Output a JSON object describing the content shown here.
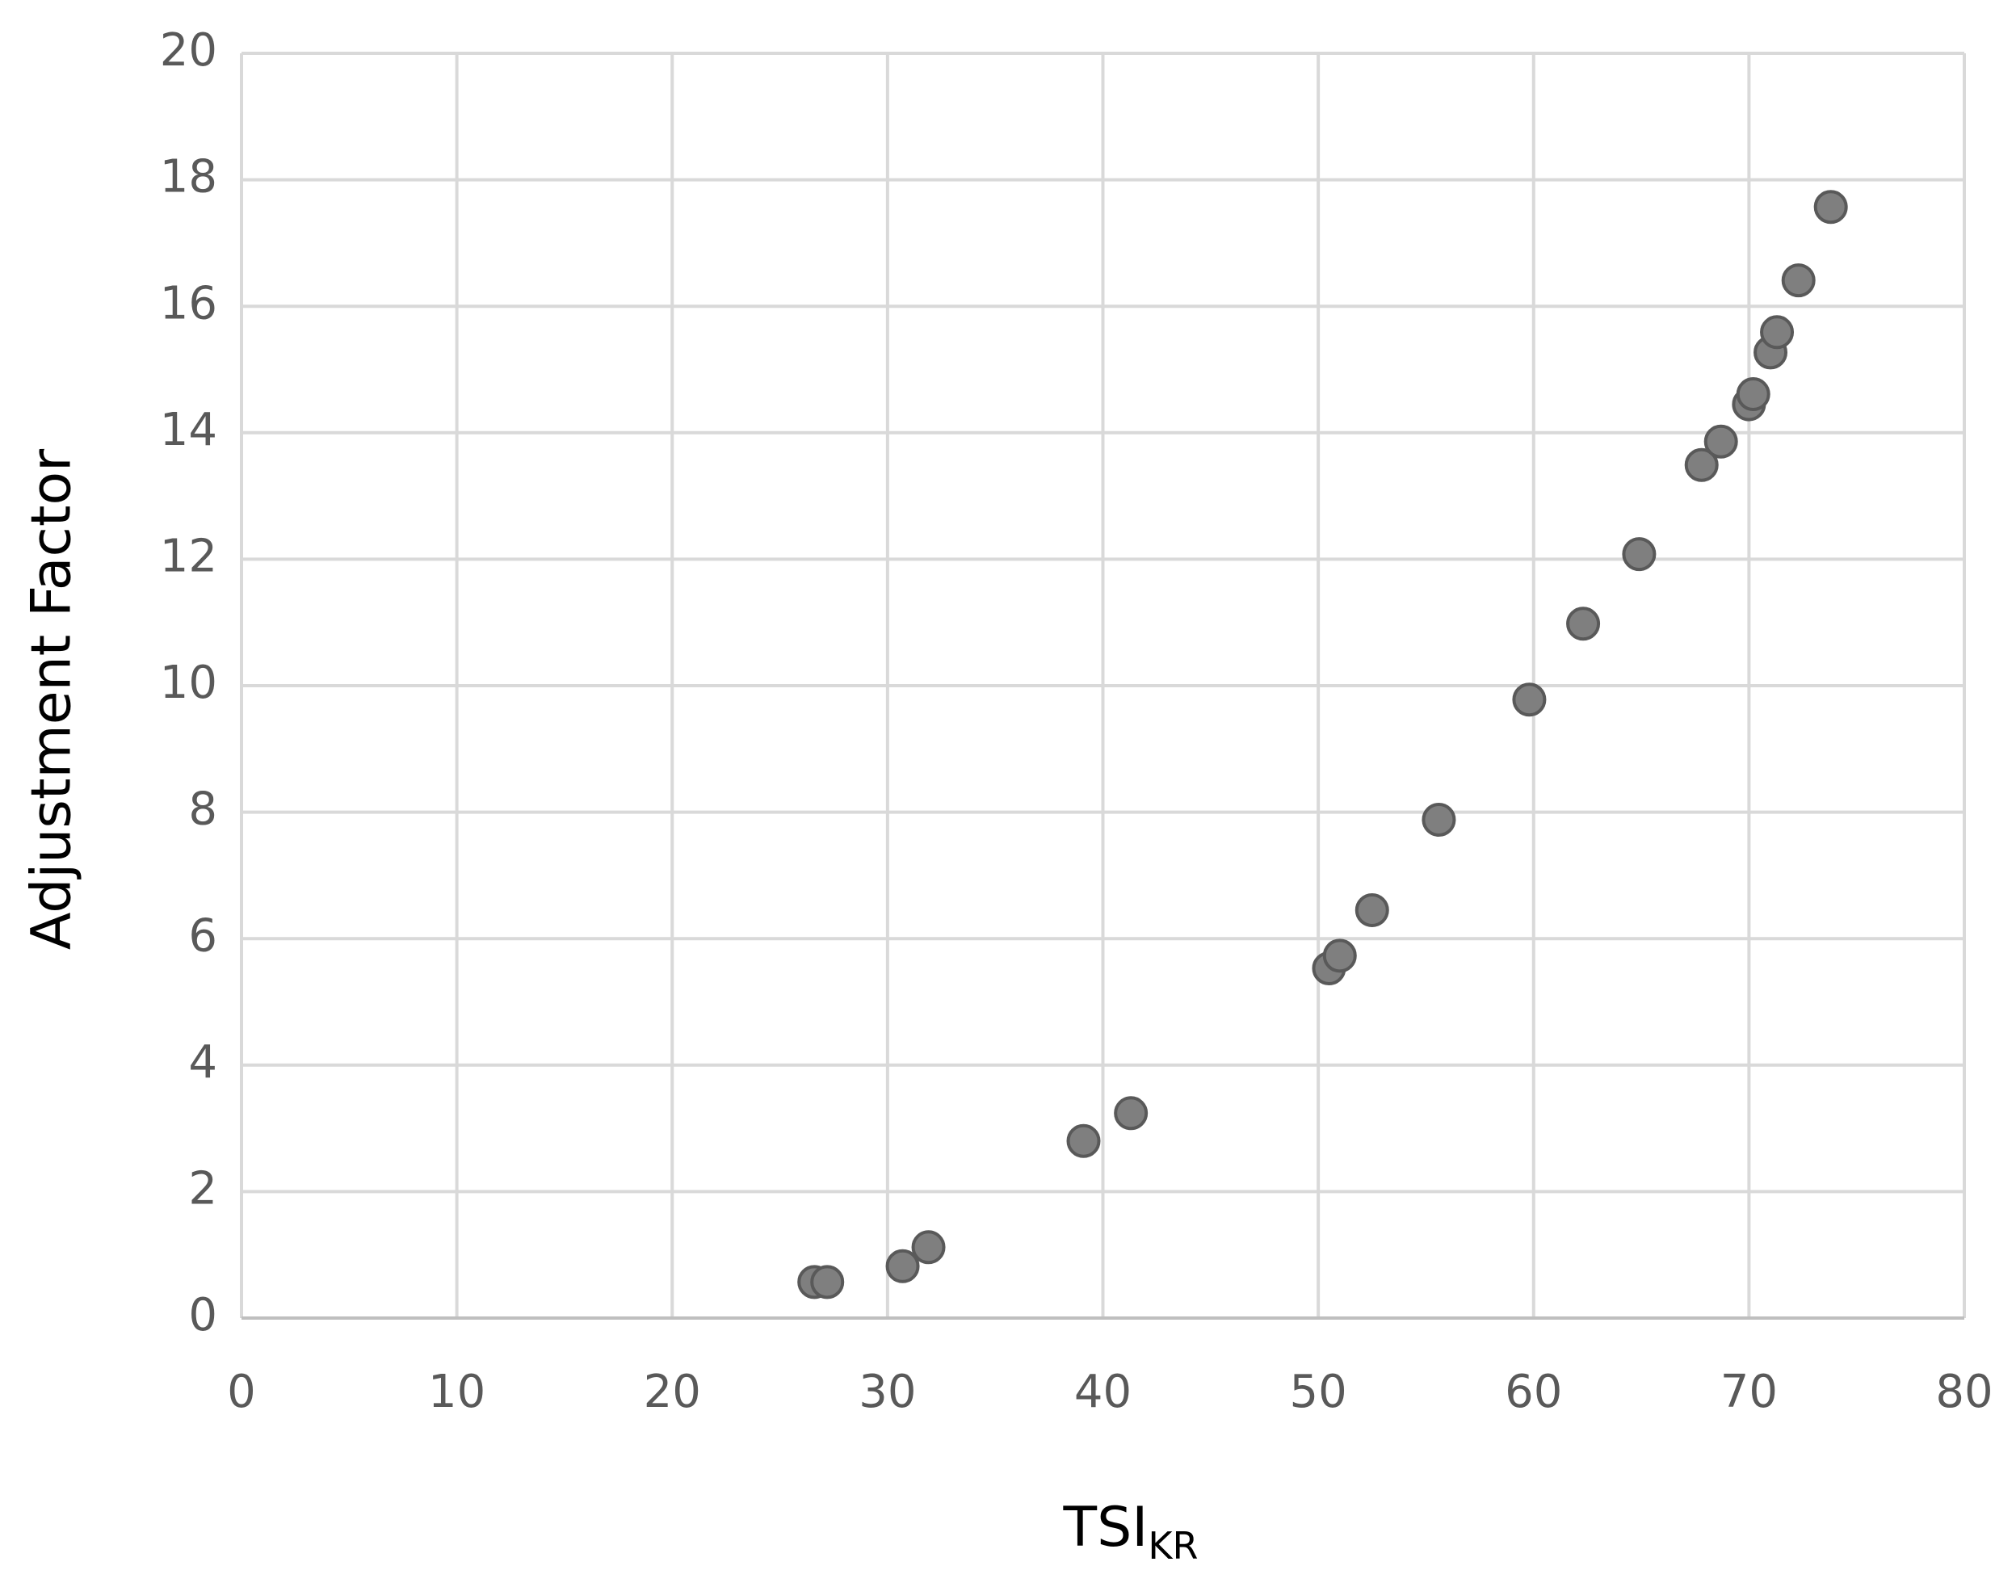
{
  "chart_data": {
    "type": "scatter",
    "x_label": "TSI",
    "x_label_subscript": "KR",
    "y_label": "Adjustment Factor",
    "x": [
      26.6,
      27.2,
      30.7,
      31.9,
      39.1,
      41.3,
      50.5,
      51.0,
      52.5,
      55.6,
      59.8,
      62.3,
      64.9,
      67.8,
      68.7,
      70.0,
      70.2,
      71.0,
      71.3,
      72.3,
      73.8
    ],
    "values": [
      0.57,
      0.57,
      0.82,
      1.12,
      2.8,
      3.24,
      5.53,
      5.73,
      6.45,
      7.88,
      9.78,
      10.98,
      12.08,
      13.49,
      13.86,
      14.45,
      14.61,
      15.27,
      15.59,
      16.41,
      17.57
    ],
    "color": "#7f7f7f",
    "edge_color": "#595959",
    "xlim": [
      0,
      80
    ],
    "xticks": [
      0,
      10,
      20,
      30,
      40,
      50,
      60,
      70,
      80
    ],
    "ylim": [
      0,
      20
    ],
    "yticks": [
      0,
      2,
      4,
      6,
      8,
      10,
      12,
      14,
      16,
      18,
      20
    ],
    "grid": true
  }
}
